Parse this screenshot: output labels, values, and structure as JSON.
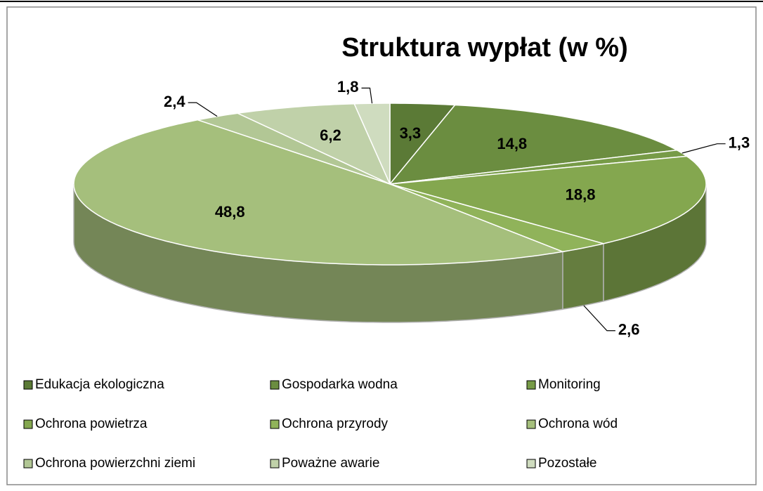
{
  "chart_data": {
    "type": "pie",
    "title": "Struktura wypłat (w %)",
    "categories": [
      "Edukacja ekologiczna",
      "Gospodarka wodna",
      "Monitoring",
      "Ochrona powietrza",
      "Ochrona przyrody",
      "Ochrona wód",
      "Ochrona powierzchni ziemi",
      "Poważne awarie",
      "Pozostałe"
    ],
    "values": [
      3.3,
      14.8,
      1.3,
      18.8,
      2.6,
      48.8,
      2.4,
      6.2,
      1.8
    ],
    "value_labels": [
      "3,3",
      "14,8",
      "1,3",
      "18,8",
      "2,6",
      "48,8",
      "2,4",
      "6,2",
      "1,8"
    ],
    "colors": [
      "#5b7a36",
      "#6b8d40",
      "#779b47",
      "#84a74f",
      "#90b35a",
      "#a5bf7c",
      "#b2c795",
      "#c0d1a9",
      "#cfdcbf"
    ]
  }
}
